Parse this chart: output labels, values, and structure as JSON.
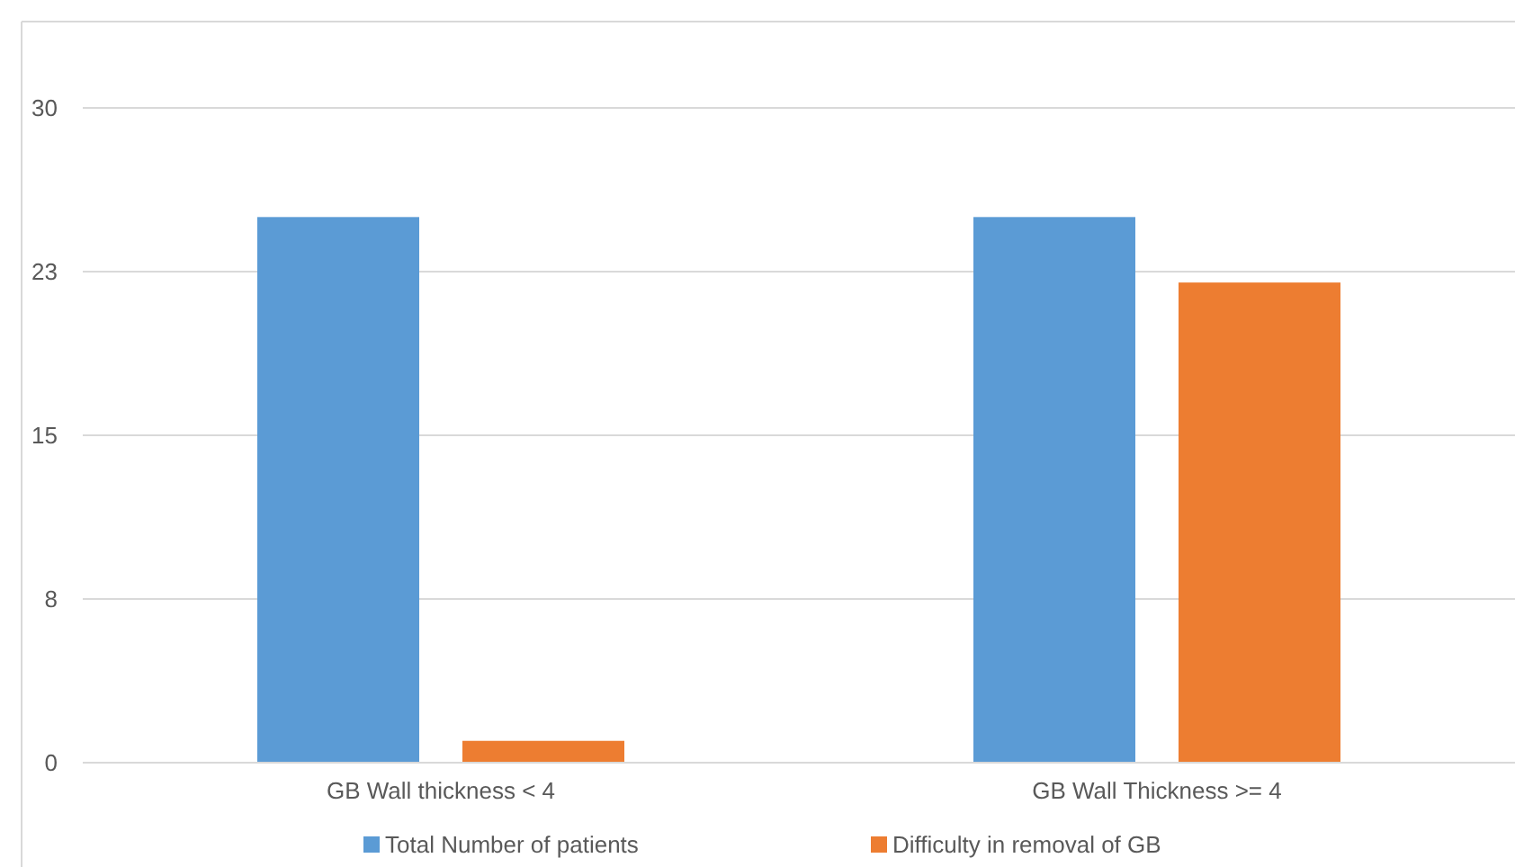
{
  "chart_data": {
    "type": "bar",
    "categories": [
      "GB Wall thickness < 4",
      "GB Wall Thickness >= 4"
    ],
    "series": [
      {
        "name": "Total Number of patients",
        "color": "#5b9bd5",
        "values": [
          25,
          25
        ]
      },
      {
        "name": "Difficulty in removal of GB",
        "color": "#ed7d31",
        "values": [
          1,
          22
        ]
      }
    ],
    "ylim": [
      0,
      30
    ],
    "yticks": [
      0,
      {
        "value": 7.5,
        "label": "8"
      },
      15,
      {
        "value": 22.5,
        "label": "23"
      },
      30
    ],
    "grid": "y",
    "legend": "bottom"
  }
}
